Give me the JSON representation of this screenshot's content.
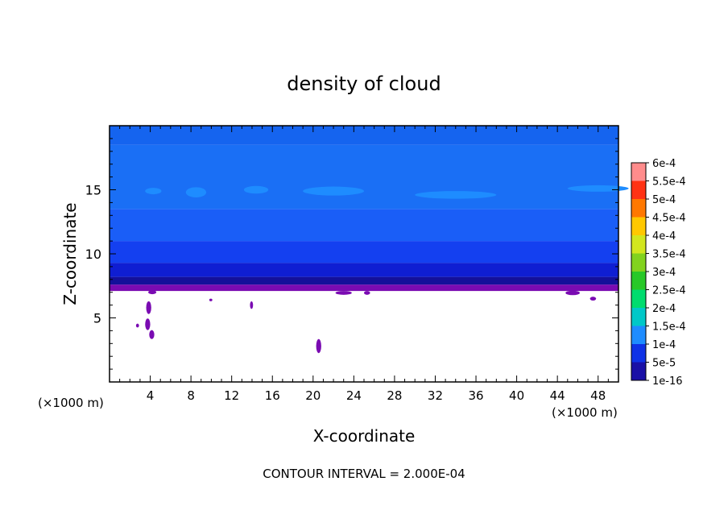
{
  "chart_data": {
    "type": "heatmap",
    "title": "density of cloud",
    "xlabel": "X-coordinate",
    "ylabel": "Z-coordinate",
    "x_unit_left": "(×1000 m)",
    "x_unit_right": "(×1000 m)",
    "footer": "CONTOUR INTERVAL = 2.000E-04",
    "xlim": [
      0,
      50
    ],
    "ylim": [
      0,
      20
    ],
    "x_ticks": [
      4,
      8,
      12,
      16,
      20,
      24,
      28,
      32,
      36,
      40,
      44,
      48
    ],
    "x_tick_labels": [
      "4",
      "8",
      "12",
      "16",
      "20",
      "24",
      "28",
      "32",
      "36",
      "40",
      "44",
      "48"
    ],
    "y_ticks": [
      5,
      10,
      15
    ],
    "y_tick_labels": [
      "5",
      "10",
      "15"
    ],
    "colorbar": {
      "labels": [
        "1e-16",
        "5e-5",
        "1e-4",
        "1.5e-4",
        "2e-4",
        "2.5e-4",
        "3e-4",
        "3.5e-4",
        "4e-4",
        "4.5e-4",
        "5e-4",
        "5.5e-4",
        "6e-4"
      ],
      "colors": [
        "#7b0ab0",
        "#1a10a6",
        "#0f32e6",
        "#1e8cff",
        "#00c8c8",
        "#00dc6e",
        "#28c828",
        "#82d21e",
        "#d2e61e",
        "#ffc800",
        "#ff7800",
        "#ff3214",
        "#ff8c8c"
      ]
    },
    "layers": [
      {
        "z_bottom": 7.1,
        "z_top": 7.6,
        "value": "1e-16",
        "color": "#7a0bb2"
      },
      {
        "z_bottom": 7.6,
        "z_top": 8.2,
        "value": "5e-5",
        "color": "#14109a"
      },
      {
        "z_bottom": 8.2,
        "z_top": 9.3,
        "value": "",
        "color": "#0f1ed2"
      },
      {
        "z_bottom": 9.3,
        "z_top": 11.0,
        "value": "1e-4",
        "color": "#1440f0"
      },
      {
        "z_bottom": 11.0,
        "z_top": 13.5,
        "value": "",
        "color": "#1a5ef7"
      },
      {
        "z_bottom": 13.5,
        "z_top": 18.5,
        "value": "",
        "color": "#1a6ff5"
      },
      {
        "z_bottom": 18.5,
        "z_top": 20.0,
        "value": "",
        "color": "#1564ef"
      }
    ],
    "patches_high": [
      {
        "x": 3.5,
        "z": 14.9,
        "w": 1.6,
        "h": 0.5
      },
      {
        "x": 7.5,
        "z": 14.8,
        "w": 2.0,
        "h": 0.8
      },
      {
        "x": 13.2,
        "z": 15.0,
        "w": 2.4,
        "h": 0.6
      },
      {
        "x": 19.0,
        "z": 14.9,
        "w": 6.0,
        "h": 0.7
      },
      {
        "x": 30.0,
        "z": 14.6,
        "w": 8.0,
        "h": 0.6
      },
      {
        "x": 45.0,
        "z": 15.1,
        "w": 6.0,
        "h": 0.5
      }
    ],
    "cloud_patches": [
      {
        "x": 3.6,
        "z": 5.8,
        "w": 0.5,
        "h": 1.0
      },
      {
        "x": 3.5,
        "z": 4.5,
        "w": 0.5,
        "h": 0.9
      },
      {
        "x": 3.9,
        "z": 3.7,
        "w": 0.5,
        "h": 0.7
      },
      {
        "x": 2.6,
        "z": 4.4,
        "w": 0.3,
        "h": 0.3
      },
      {
        "x": 13.8,
        "z": 6.0,
        "w": 0.3,
        "h": 0.6
      },
      {
        "x": 20.3,
        "z": 2.8,
        "w": 0.5,
        "h": 1.1
      },
      {
        "x": 3.8,
        "z": 7.0,
        "w": 0.8,
        "h": 0.3
      },
      {
        "x": 22.2,
        "z": 6.95,
        "w": 1.6,
        "h": 0.3
      },
      {
        "x": 25.0,
        "z": 6.95,
        "w": 0.6,
        "h": 0.3
      },
      {
        "x": 44.8,
        "z": 6.95,
        "w": 1.4,
        "h": 0.35
      },
      {
        "x": 47.2,
        "z": 6.5,
        "w": 0.6,
        "h": 0.3
      },
      {
        "x": 9.8,
        "z": 6.4,
        "w": 0.3,
        "h": 0.2
      }
    ]
  }
}
